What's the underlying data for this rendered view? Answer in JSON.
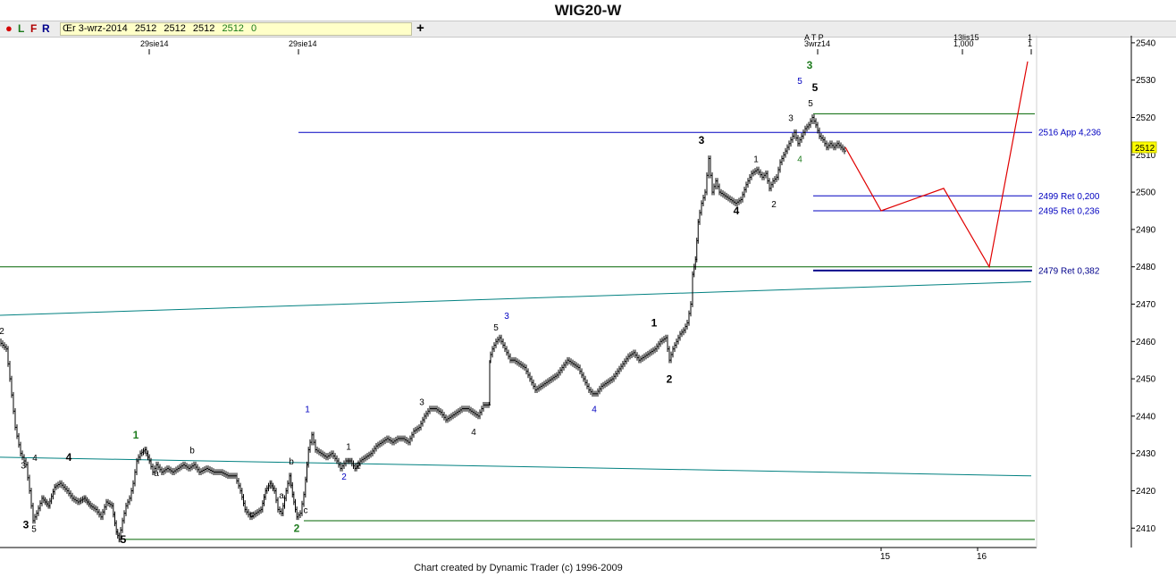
{
  "title": "WIG20-W",
  "toolbar": {
    "dot_icon": "red-dot",
    "btn_l": "L",
    "btn_f": "F",
    "btn_r": "R",
    "ohlc_label": "Œr 3-wrz-2014",
    "open": "2512",
    "high": "2512",
    "low": "2512",
    "close": "2512",
    "change": "0",
    "plus_label": "+"
  },
  "credit": "Chart created by Dynamic Trader  (c) 1996-2009",
  "chart_data": {
    "type": "line",
    "title": "WIG20-W",
    "ylim": [
      2404,
      2543
    ],
    "y_ticks": [
      2410,
      2420,
      2430,
      2440,
      2450,
      2460,
      2470,
      2480,
      2490,
      2500,
      2510,
      2520,
      2530,
      2540
    ],
    "last_price": "2512",
    "date_labels": [
      "29sie14",
      "29sie14",
      "3wrz14",
      "13lis15",
      "1,000",
      "1",
      "1"
    ],
    "top_label": "A T P",
    "bottom_date_labels": [
      "15",
      "16"
    ],
    "price_series": [
      [
        0,
        2460
      ],
      [
        8,
        2458
      ],
      [
        12,
        2450
      ],
      [
        18,
        2437
      ],
      [
        24,
        2430
      ],
      [
        30,
        2427
      ],
      [
        34,
        2420
      ],
      [
        38,
        2412
      ],
      [
        42,
        2414
      ],
      [
        48,
        2418
      ],
      [
        55,
        2416
      ],
      [
        62,
        2421
      ],
      [
        68,
        2422
      ],
      [
        76,
        2420
      ],
      [
        82,
        2418
      ],
      [
        88,
        2417
      ],
      [
        95,
        2418
      ],
      [
        102,
        2416
      ],
      [
        108,
        2415
      ],
      [
        114,
        2413
      ],
      [
        120,
        2417
      ],
      [
        126,
        2416
      ],
      [
        131,
        2409
      ],
      [
        134,
        2407
      ],
      [
        138,
        2412
      ],
      [
        142,
        2416
      ],
      [
        146,
        2418
      ],
      [
        150,
        2422
      ],
      [
        154,
        2428
      ],
      [
        158,
        2430
      ],
      [
        163,
        2431
      ],
      [
        168,
        2428
      ],
      [
        172,
        2425
      ],
      [
        176,
        2427
      ],
      [
        182,
        2425
      ],
      [
        188,
        2426
      ],
      [
        194,
        2425
      ],
      [
        200,
        2426
      ],
      [
        206,
        2427
      ],
      [
        212,
        2426
      ],
      [
        218,
        2427
      ],
      [
        224,
        2425
      ],
      [
        232,
        2426
      ],
      [
        240,
        2425
      ],
      [
        248,
        2425
      ],
      [
        256,
        2424
      ],
      [
        264,
        2424
      ],
      [
        270,
        2420
      ],
      [
        275,
        2415
      ],
      [
        281,
        2413
      ],
      [
        287,
        2414
      ],
      [
        293,
        2415
      ],
      [
        298,
        2420
      ],
      [
        303,
        2422
      ],
      [
        308,
        2420
      ],
      [
        312,
        2415
      ],
      [
        316,
        2414
      ],
      [
        321,
        2420
      ],
      [
        325,
        2424
      ],
      [
        328,
        2419
      ],
      [
        333,
        2413
      ],
      [
        337,
        2414
      ],
      [
        341,
        2419
      ],
      [
        346,
        2431
      ],
      [
        350,
        2435
      ],
      [
        354,
        2431
      ],
      [
        360,
        2430
      ],
      [
        366,
        2429
      ],
      [
        372,
        2430
      ],
      [
        378,
        2428
      ],
      [
        382,
        2426
      ],
      [
        388,
        2428
      ],
      [
        393,
        2428
      ],
      [
        398,
        2426
      ],
      [
        404,
        2428
      ],
      [
        410,
        2429
      ],
      [
        416,
        2430
      ],
      [
        422,
        2432
      ],
      [
        428,
        2433
      ],
      [
        434,
        2434
      ],
      [
        440,
        2433
      ],
      [
        446,
        2434
      ],
      [
        452,
        2434
      ],
      [
        458,
        2433
      ],
      [
        464,
        2436
      ],
      [
        470,
        2437
      ],
      [
        476,
        2440
      ],
      [
        482,
        2442
      ],
      [
        488,
        2442
      ],
      [
        494,
        2441
      ],
      [
        500,
        2439
      ],
      [
        506,
        2440
      ],
      [
        512,
        2441
      ],
      [
        518,
        2442
      ],
      [
        524,
        2442
      ],
      [
        530,
        2441
      ],
      [
        536,
        2440
      ],
      [
        542,
        2443
      ],
      [
        548,
        2443
      ],
      [
        548,
        2455
      ],
      [
        552,
        2458
      ],
      [
        556,
        2460
      ],
      [
        560,
        2461
      ],
      [
        564,
        2459
      ],
      [
        568,
        2457
      ],
      [
        572,
        2455
      ],
      [
        576,
        2455
      ],
      [
        582,
        2454
      ],
      [
        588,
        2453
      ],
      [
        594,
        2450
      ],
      [
        600,
        2447
      ],
      [
        606,
        2448
      ],
      [
        612,
        2449
      ],
      [
        618,
        2450
      ],
      [
        624,
        2451
      ],
      [
        630,
        2453
      ],
      [
        636,
        2455
      ],
      [
        642,
        2454
      ],
      [
        648,
        2453
      ],
      [
        654,
        2450
      ],
      [
        660,
        2447
      ],
      [
        664,
        2446
      ],
      [
        668,
        2446
      ],
      [
        674,
        2448
      ],
      [
        680,
        2449
      ],
      [
        686,
        2450
      ],
      [
        692,
        2452
      ],
      [
        698,
        2454
      ],
      [
        704,
        2456
      ],
      [
        710,
        2457
      ],
      [
        716,
        2455
      ],
      [
        722,
        2456
      ],
      [
        728,
        2457
      ],
      [
        734,
        2458
      ],
      [
        740,
        2460
      ],
      [
        746,
        2461
      ],
      [
        750,
        2455
      ],
      [
        754,
        2458
      ],
      [
        758,
        2460
      ],
      [
        762,
        2462
      ],
      [
        766,
        2463
      ],
      [
        770,
        2465
      ],
      [
        774,
        2470
      ],
      [
        776,
        2478
      ],
      [
        779,
        2482
      ],
      [
        782,
        2492
      ],
      [
        786,
        2497
      ],
      [
        790,
        2500
      ],
      [
        794,
        2509
      ],
      [
        798,
        2500
      ],
      [
        802,
        2503
      ],
      [
        806,
        2500
      ],
      [
        812,
        2499
      ],
      [
        818,
        2498
      ],
      [
        824,
        2497
      ],
      [
        830,
        2498
      ],
      [
        836,
        2502
      ],
      [
        842,
        2505
      ],
      [
        848,
        2506
      ],
      [
        854,
        2504
      ],
      [
        858,
        2505
      ],
      [
        862,
        2501
      ],
      [
        866,
        2503
      ],
      [
        870,
        2504
      ],
      [
        874,
        2508
      ],
      [
        878,
        2510
      ],
      [
        882,
        2512
      ],
      [
        886,
        2514
      ],
      [
        890,
        2516
      ],
      [
        894,
        2513
      ],
      [
        898,
        2515
      ],
      [
        902,
        2517
      ],
      [
        906,
        2518
      ],
      [
        910,
        2520
      ],
      [
        914,
        2518
      ],
      [
        918,
        2515
      ],
      [
        922,
        2514
      ],
      [
        926,
        2512
      ],
      [
        930,
        2513
      ],
      [
        934,
        2512
      ],
      [
        938,
        2513
      ],
      [
        942,
        2512
      ],
      [
        946,
        2511
      ]
    ],
    "horizontal_lines": [
      {
        "price": 2516,
        "label": "2516 App 4,236",
        "color": "#0000c0"
      },
      {
        "price": 2521,
        "color": "#006400"
      },
      {
        "price": 2499,
        "label": "2499 Ret 0,200",
        "color": "#0000c0"
      },
      {
        "price": 2495,
        "label": "2495 Ret 0,236",
        "color": "#0000c0"
      },
      {
        "price": 2479,
        "label": "2479 Ret 0,382",
        "color": "#00008b"
      },
      {
        "price": 2480,
        "color": "#006400"
      },
      {
        "price": 2412,
        "color": "#006400"
      },
      {
        "price": 2407,
        "color": "#006400"
      }
    ],
    "trend_lines": [
      {
        "from": [
          0,
          2467
        ],
        "to": [
          1154,
          2476
        ],
        "color": "#008080"
      },
      {
        "from": [
          0,
          2429
        ],
        "to": [
          1154,
          2424
        ],
        "color": "#008080"
      }
    ],
    "projection": [
      [
        946,
        2512
      ],
      [
        986,
        2495
      ],
      [
        1056,
        2501
      ],
      [
        1107,
        2480
      ],
      [
        1150,
        2535
      ]
    ],
    "wave_labels": [
      {
        "text": "2",
        "at": [
          2,
          2462
        ],
        "color": "#000000",
        "bold": false
      },
      {
        "text": "3",
        "at": [
          26,
          2426
        ],
        "color": "#000000",
        "bold": false
      },
      {
        "text": "4",
        "at": [
          39,
          2428
        ],
        "color": "#000000",
        "bold": false
      },
      {
        "text": "3",
        "at": [
          29,
          2410
        ],
        "color": "#000000",
        "bold": true
      },
      {
        "text": "5",
        "at": [
          38,
          2409
        ],
        "color": "#000000",
        "bold": false
      },
      {
        "text": "4",
        "at": [
          77,
          2428
        ],
        "color": "#000000",
        "bold": true
      },
      {
        "text": "5",
        "at": [
          138,
          2406
        ],
        "color": "#000000",
        "bold": true
      },
      {
        "text": "1",
        "at": [
          152,
          2434
        ],
        "color": "#1e7b1e",
        "bold": true
      },
      {
        "text": "a",
        "at": [
          175,
          2424
        ],
        "color": "#000000",
        "bold": false
      },
      {
        "text": "b",
        "at": [
          215,
          2430
        ],
        "color": "#000000",
        "bold": false
      },
      {
        "text": "c",
        "at": [
          282,
          2413
        ],
        "color": "#000000",
        "bold": false
      },
      {
        "text": "a",
        "at": [
          315,
          2418
        ],
        "color": "#000000",
        "bold": false
      },
      {
        "text": "b",
        "at": [
          326,
          2427
        ],
        "color": "#000000",
        "bold": false
      },
      {
        "text": "c",
        "at": [
          342,
          2414
        ],
        "color": "#000000",
        "bold": false
      },
      {
        "text": "2",
        "at": [
          332,
          2409
        ],
        "color": "#1e7b1e",
        "bold": true
      },
      {
        "text": "1",
        "at": [
          344,
          2441
        ],
        "color": "#0000c0",
        "bold": false
      },
      {
        "text": "1",
        "at": [
          390,
          2431
        ],
        "color": "#000000",
        "bold": false
      },
      {
        "text": "2",
        "at": [
          385,
          2423
        ],
        "color": "#0000c0",
        "bold": false
      },
      {
        "text": "2",
        "at": [
          401,
          2426
        ],
        "color": "#000000",
        "bold": false
      },
      {
        "text": "3",
        "at": [
          472,
          2443
        ],
        "color": "#000000",
        "bold": false
      },
      {
        "text": "4",
        "at": [
          530,
          2435
        ],
        "color": "#000000",
        "bold": false
      },
      {
        "text": "5",
        "at": [
          555,
          2463
        ],
        "color": "#000000",
        "bold": false
      },
      {
        "text": "3",
        "at": [
          567,
          2466
        ],
        "color": "#0000c0",
        "bold": false
      },
      {
        "text": "4",
        "at": [
          665,
          2441
        ],
        "color": "#0000c0",
        "bold": false
      },
      {
        "text": "1",
        "at": [
          732,
          2464
        ],
        "color": "#000000",
        "bold": true
      },
      {
        "text": "2",
        "at": [
          749,
          2449
        ],
        "color": "#000000",
        "bold": true
      },
      {
        "text": "3",
        "at": [
          785,
          2513
        ],
        "color": "#000000",
        "bold": true
      },
      {
        "text": "4",
        "at": [
          824,
          2494
        ],
        "color": "#000000",
        "bold": true
      },
      {
        "text": "1",
        "at": [
          846,
          2508
        ],
        "color": "#000000",
        "bold": false
      },
      {
        "text": "2",
        "at": [
          866,
          2496
        ],
        "color": "#000000",
        "bold": false
      },
      {
        "text": "3",
        "at": [
          885,
          2519
        ],
        "color": "#000000",
        "bold": false
      },
      {
        "text": "4",
        "at": [
          895,
          2508
        ],
        "color": "#1e7b1e",
        "bold": false
      },
      {
        "text": "5",
        "at": [
          907,
          2523
        ],
        "color": "#000000",
        "bold": false
      },
      {
        "text": "5",
        "at": [
          895,
          2529
        ],
        "color": "#0000c0",
        "bold": false
      },
      {
        "text": "5",
        "at": [
          912,
          2527
        ],
        "color": "#000000",
        "bold": true
      },
      {
        "text": "3",
        "at": [
          906,
          2533
        ],
        "color": "#1e7b1e",
        "bold": true
      }
    ]
  }
}
